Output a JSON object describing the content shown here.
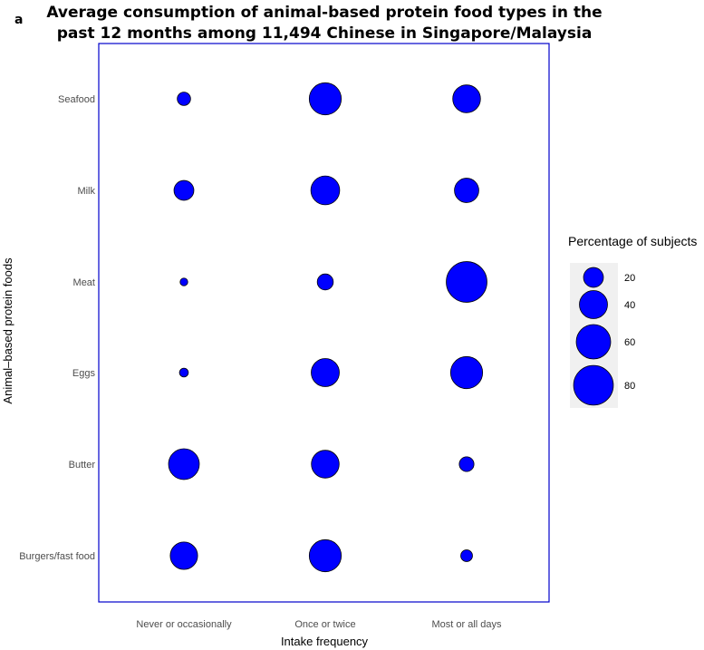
{
  "panel_label": "a",
  "chart_data": {
    "type": "scatter",
    "title_lines": [
      "Average consumption of animal-based protein food types in the",
      "past 12 months among 11,494 Chinese in Singapore/Malaysia"
    ],
    "xlabel": "Intake frequency",
    "ylabel": "Animal–based protein foods",
    "x_categories": [
      "Never or occasionally",
      "Once or twice",
      "Most or all days"
    ],
    "y_categories": [
      "Seafood",
      "Milk",
      "Meat",
      "Eggs",
      "Butter",
      "Burgers/fast food"
    ],
    "size_variable": "Percentage of subjects",
    "points": [
      {
        "food": "Seafood",
        "frequency": "Never or occasionally",
        "percentage": 9
      },
      {
        "food": "Seafood",
        "frequency": "Once or twice",
        "percentage": 52
      },
      {
        "food": "Seafood",
        "frequency": "Most or all days",
        "percentage": 39
      },
      {
        "food": "Milk",
        "frequency": "Never or occasionally",
        "percentage": 20
      },
      {
        "food": "Milk",
        "frequency": "Once or twice",
        "percentage": 42
      },
      {
        "food": "Milk",
        "frequency": "Most or all days",
        "percentage": 30
      },
      {
        "food": "Meat",
        "frequency": "Never or occasionally",
        "percentage": 3
      },
      {
        "food": "Meat",
        "frequency": "Once or twice",
        "percentage": 13
      },
      {
        "food": "Meat",
        "frequency": "Most or all days",
        "percentage": 84
      },
      {
        "food": "Eggs",
        "frequency": "Never or occasionally",
        "percentage": 4
      },
      {
        "food": "Eggs",
        "frequency": "Once or twice",
        "percentage": 40
      },
      {
        "food": "Eggs",
        "frequency": "Most or all days",
        "percentage": 52
      },
      {
        "food": "Butter",
        "frequency": "Never or occasionally",
        "percentage": 48
      },
      {
        "food": "Butter",
        "frequency": "Once or twice",
        "percentage": 39
      },
      {
        "food": "Butter",
        "frequency": "Most or all days",
        "percentage": 11
      },
      {
        "food": "Burgers/fast food",
        "frequency": "Never or occasionally",
        "percentage": 38
      },
      {
        "food": "Burgers/fast food",
        "frequency": "Once or twice",
        "percentage": 52
      },
      {
        "food": "Burgers/fast food",
        "frequency": "Most or all days",
        "percentage": 7
      }
    ],
    "legend": {
      "title": "Percentage of subjects",
      "values": [
        20,
        40,
        60,
        80
      ],
      "labels": [
        "20",
        "40",
        "60",
        "80"
      ],
      "placement": "right"
    },
    "colors": {
      "point_fill": "#0000ff",
      "point_stroke": "#000000",
      "panel_border": "#0000cc",
      "legend_key_bg": "#f0f0f0"
    }
  }
}
